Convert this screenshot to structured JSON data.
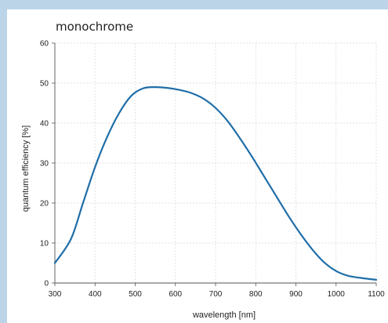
{
  "chart_data": {
    "type": "line",
    "title": "monochrome",
    "xlabel": "wavelength [nm]",
    "ylabel": "quantum efficiency [%]",
    "xlim": [
      300,
      1100
    ],
    "ylim": [
      0,
      60
    ],
    "xticks": [
      "300",
      "400",
      "500",
      "600",
      "700",
      "800",
      "900",
      "1000",
      "1100"
    ],
    "yticks": [
      "0",
      "10",
      "20",
      "30",
      "40",
      "50",
      "60"
    ],
    "grid": true,
    "line_color": "#1f6ea8",
    "series": [
      {
        "name": "",
        "x": [
          300,
          340,
          370,
          400,
          430,
          460,
          490,
          520,
          550,
          580,
          610,
          640,
          670,
          700,
          730,
          760,
          790,
          820,
          850,
          880,
          910,
          940,
          970,
          1000,
          1030,
          1060,
          1100
        ],
        "values": [
          5,
          11,
          20,
          29,
          36.5,
          42.5,
          46.8,
          48.7,
          49,
          48.8,
          48.3,
          47.5,
          46.1,
          43.8,
          40.5,
          36.3,
          31.7,
          26.8,
          21.9,
          17,
          12.5,
          8.5,
          5.2,
          3,
          1.8,
          1.3,
          0.8
        ]
      }
    ]
  }
}
